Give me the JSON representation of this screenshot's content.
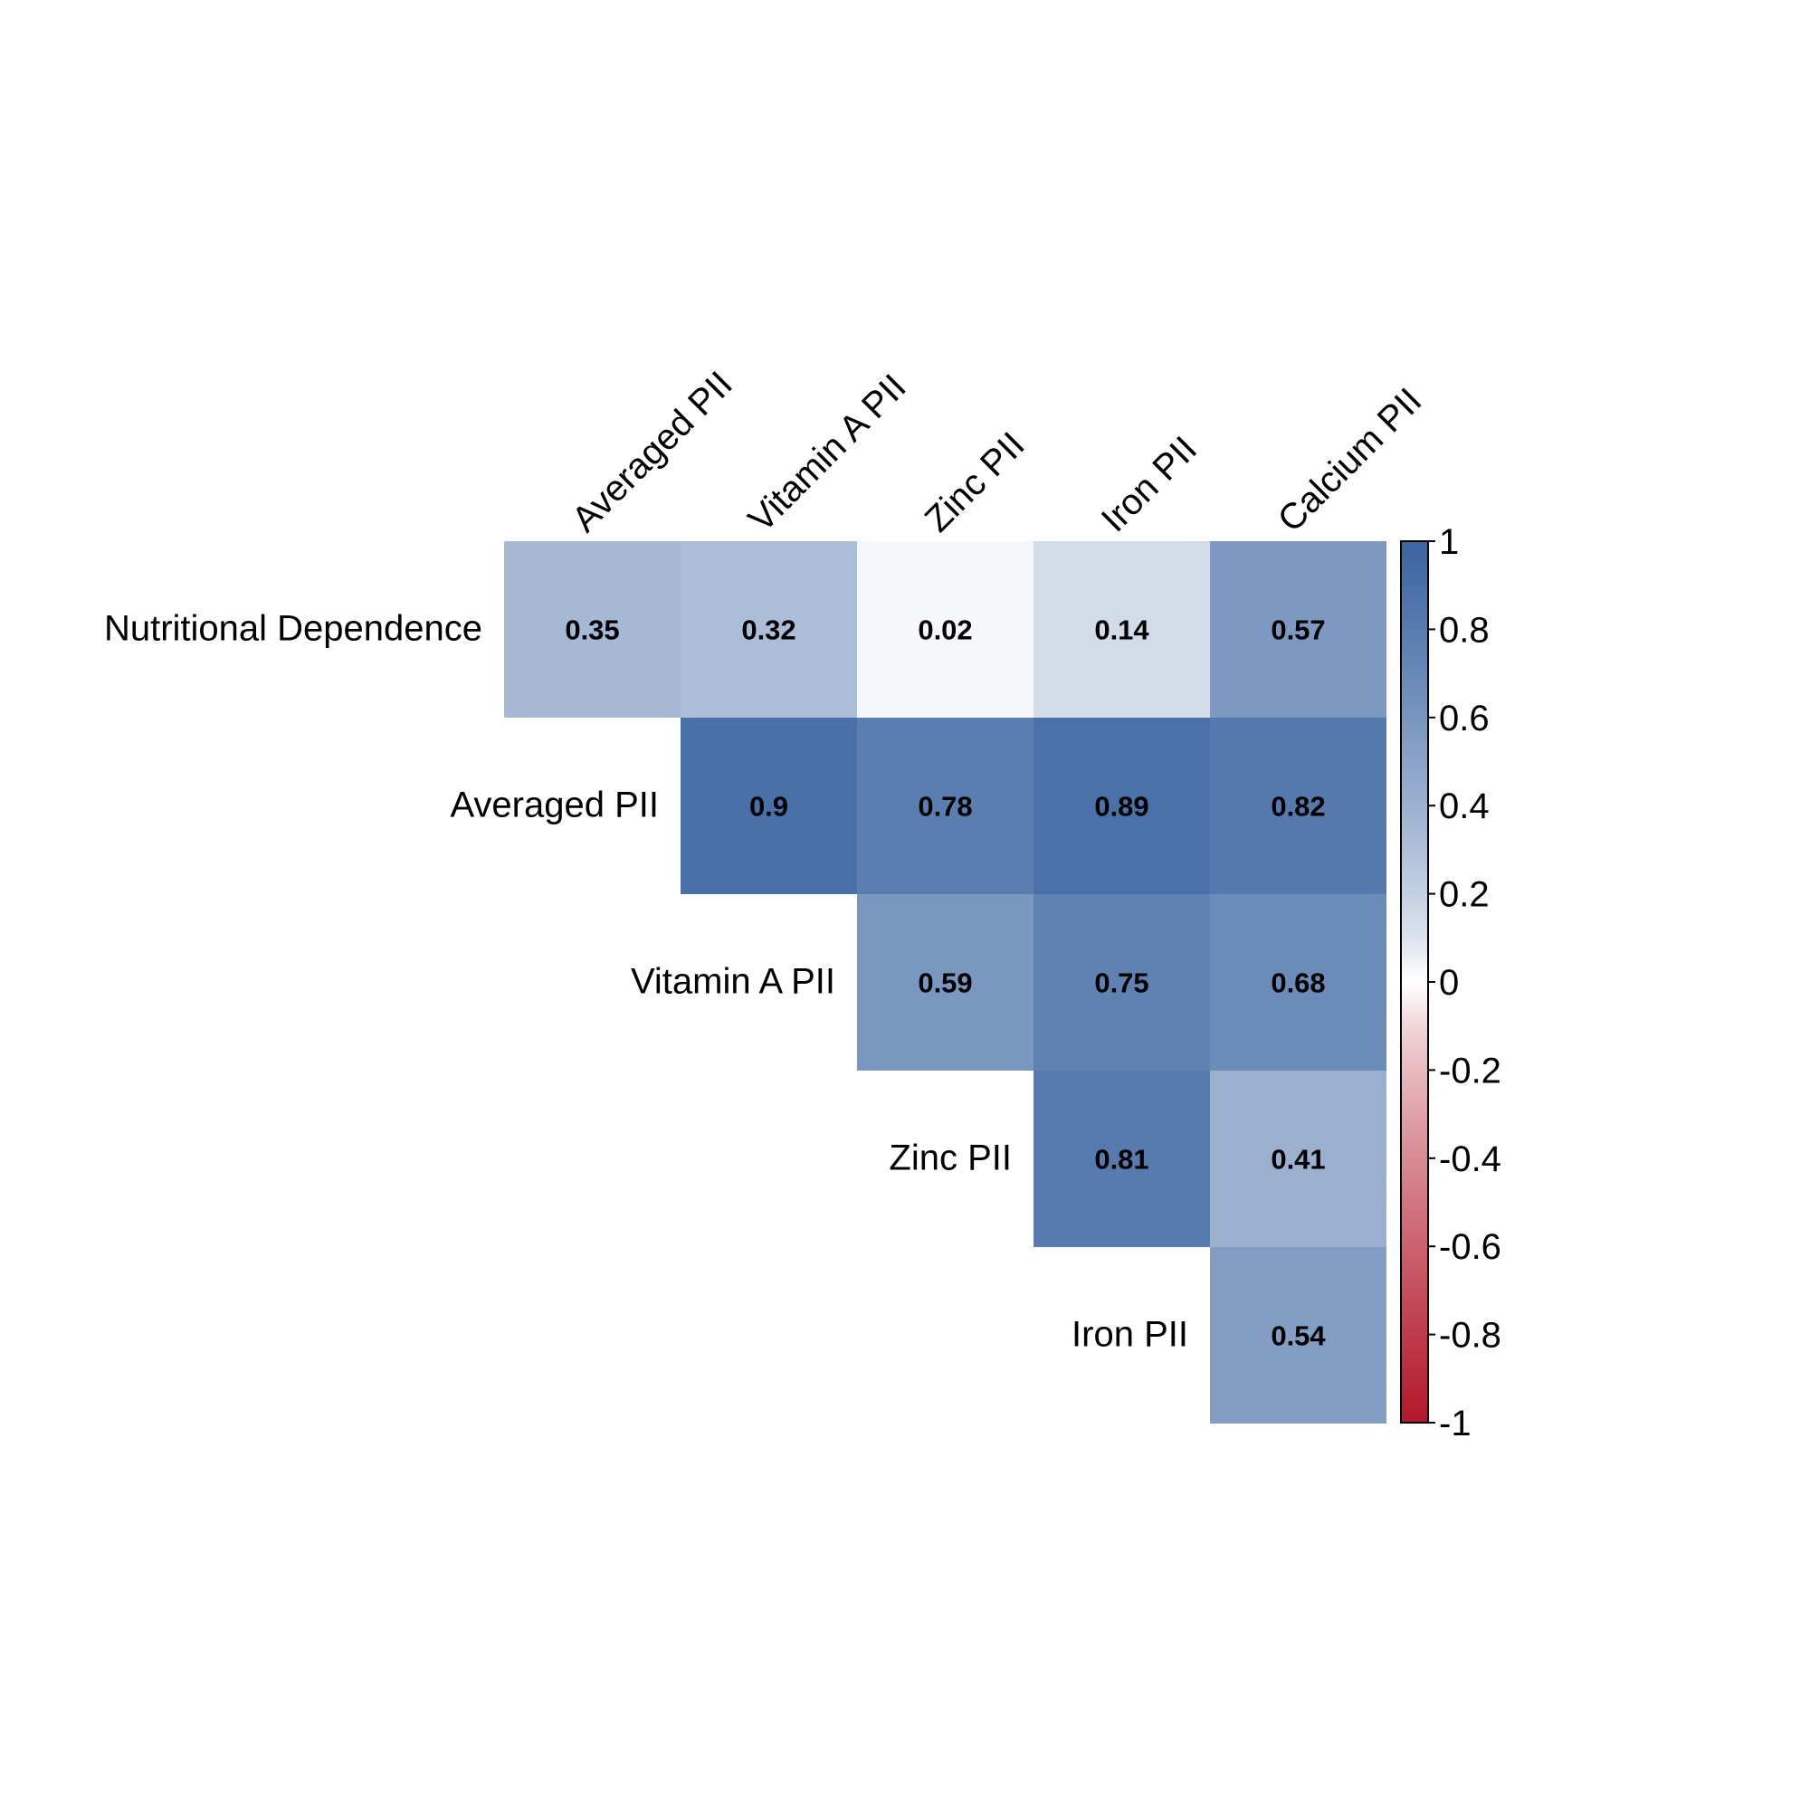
{
  "chart_data": {
    "type": "heatmap",
    "title": "",
    "row_labels": [
      "Nutritional Dependence",
      "Averaged PII",
      "Vitamin A PII",
      "Zinc PII",
      "Iron PII"
    ],
    "column_labels": [
      "Averaged PII",
      "Vitamin A PII",
      "Zinc PII",
      "Iron PII",
      "Calcium PII"
    ],
    "values": [
      [
        0.35,
        0.32,
        0.02,
        0.14,
        0.57
      ],
      [
        null,
        0.9,
        0.78,
        0.89,
        0.82
      ],
      [
        null,
        null,
        0.59,
        0.75,
        0.68
      ],
      [
        null,
        null,
        null,
        0.81,
        0.41
      ],
      [
        null,
        null,
        null,
        null,
        0.54
      ]
    ],
    "value_labels": [
      [
        "0.35",
        "0.32",
        "0.02",
        "0.14",
        "0.57"
      ],
      [
        null,
        "0.9",
        "0.78",
        "0.89",
        "0.82"
      ],
      [
        null,
        null,
        "0.59",
        "0.75",
        "0.68"
      ],
      [
        null,
        null,
        null,
        "0.81",
        "0.41"
      ],
      [
        null,
        null,
        null,
        null,
        "0.54"
      ]
    ],
    "shape": "upper-triangular",
    "color_scale": {
      "range": [
        -1,
        1
      ],
      "low_color": "#b2182b",
      "mid_color": "#ffffff",
      "high_color": "#3a64a0",
      "ticks": [
        1,
        0.8,
        0.6,
        0.4,
        0.2,
        0,
        -0.2,
        -0.4,
        -0.6,
        -0.8,
        -1
      ],
      "tick_labels": [
        "1",
        "0.8",
        "0.6",
        "0.4",
        "0.2",
        "0",
        "-0.2",
        "-0.4",
        "-0.6",
        "-0.8",
        "-1"
      ]
    },
    "legend": "right",
    "grid": false
  }
}
